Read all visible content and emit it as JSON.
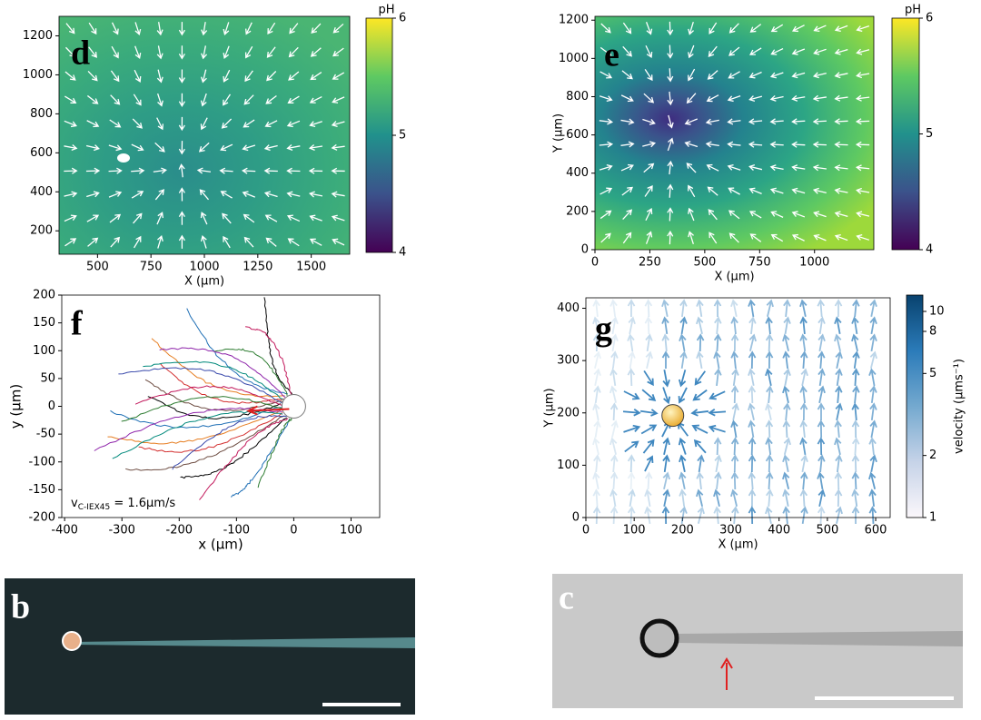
{
  "chart_data": [
    {
      "type": "heatmap",
      "label": "d",
      "xlabel": "X (µm)",
      "xlim": [
        320,
        1680
      ],
      "xticks": [
        500,
        750,
        1000,
        1250,
        1500
      ],
      "ylim": [
        80,
        1300
      ],
      "yticks": [
        200,
        400,
        600,
        800,
        1000,
        1200
      ],
      "colorbar": {
        "label": "pH",
        "lim": [
          4,
          6
        ],
        "ticks": [
          4,
          5,
          6
        ],
        "colors": [
          "#440154",
          "#3b528b",
          "#21918c",
          "#5ec962",
          "#fde725"
        ]
      }
    },
    {
      "type": "heatmap",
      "label": "e",
      "xlabel": "X (µm)",
      "ylabel": "Y (µm)",
      "xlim": [
        0,
        1270
      ],
      "xticks": [
        0,
        250,
        500,
        750,
        1000
      ],
      "ylim": [
        0,
        1220
      ],
      "yticks": [
        0,
        200,
        400,
        600,
        800,
        1000,
        1200
      ],
      "colorbar": {
        "label": "pH",
        "lim": [
          4,
          6
        ],
        "ticks": [
          4,
          5,
          6
        ],
        "colors": [
          "#440154",
          "#3b528b",
          "#21918c",
          "#5ec962",
          "#fde725"
        ]
      }
    },
    {
      "type": "line",
      "label": "f",
      "xlabel": "x (µm)",
      "ylabel": "y (µm)",
      "xlim": [
        -405,
        150
      ],
      "xticks": [
        -400,
        -300,
        -200,
        -100,
        0,
        100
      ],
      "ylim": [
        -200,
        200
      ],
      "yticks": [
        -200,
        -150,
        -100,
        -50,
        0,
        50,
        100,
        150,
        200
      ],
      "annotation": {
        "text": "v",
        "sub": "C-IEX45",
        "rest": " = 1.6µm/s"
      }
    },
    {
      "type": "quiver",
      "label": "g",
      "xlabel": "X (µm)",
      "ylabel": "Y (µm)",
      "xlim": [
        0,
        630
      ],
      "xticks": [
        0,
        100,
        200,
        300,
        400,
        500,
        600
      ],
      "ylim": [
        0,
        420
      ],
      "yticks": [
        0,
        100,
        200,
        300,
        400
      ],
      "colorbar": {
        "label": "velocity (µms⁻¹)",
        "lim": [
          1,
          12
        ],
        "ticks": [
          1,
          2,
          5,
          8,
          10
        ],
        "log": true,
        "colors": [
          "#fbf7fb",
          "#c6d3e8",
          "#74a9cf",
          "#2b7bb9",
          "#08426e"
        ]
      }
    },
    {
      "type": "image",
      "label": "b"
    },
    {
      "type": "image",
      "label": "c"
    }
  ]
}
